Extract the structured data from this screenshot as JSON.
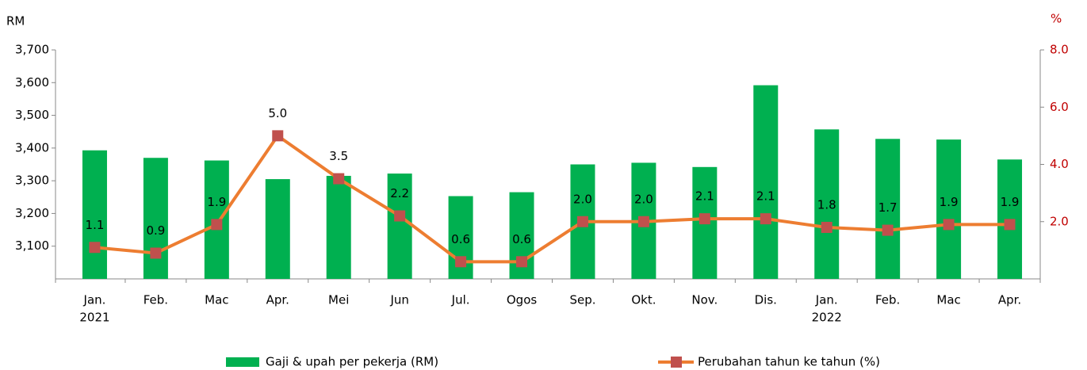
{
  "chart_data": {
    "type": "bar_line",
    "y_label": "RM",
    "y2_label": "%",
    "categories": [
      [
        "Jan.",
        "2021"
      ],
      [
        "Feb."
      ],
      [
        "Mac"
      ],
      [
        "Apr."
      ],
      [
        "Mei"
      ],
      [
        "Jun"
      ],
      [
        "Jul."
      ],
      [
        "Ogos"
      ],
      [
        "Sep."
      ],
      [
        "Okt."
      ],
      [
        "Nov."
      ],
      [
        "Dis."
      ],
      [
        "Jan.",
        "2022"
      ],
      [
        "Feb."
      ],
      [
        "Mac"
      ],
      [
        "Apr."
      ]
    ],
    "series": [
      {
        "name": "Gaji & upah per pekerja (RM)",
        "type": "bar",
        "color": "#00b050",
        "values": [
          3393,
          3370,
          3362,
          3305,
          3315,
          3322,
          3253,
          3265,
          3350,
          3355,
          3342,
          3592,
          3457,
          3428,
          3426,
          3365
        ]
      },
      {
        "name": "Perubahan tahun ke tahun (%)",
        "type": "line",
        "axis": "y2",
        "color": "#ed7d31",
        "marker_color": "#c0504d",
        "values": [
          1.1,
          0.9,
          1.9,
          5.0,
          3.5,
          2.2,
          0.6,
          0.6,
          2.0,
          2.0,
          2.1,
          2.1,
          1.8,
          1.7,
          1.9,
          1.9
        ],
        "value_labels": [
          "1.1",
          "0.9",
          "1.9",
          "5.0",
          "3.5",
          "2.2",
          "0.6",
          "0.6",
          "2.0",
          "2.0",
          "2.1",
          "2.1",
          "1.8",
          "1.7",
          "1.9",
          "1.9"
        ]
      }
    ],
    "ylim": [
      3000,
      3700
    ],
    "yticks": [
      {
        "value": 3100,
        "label": "3,100"
      },
      {
        "value": 3200,
        "label": "3,200"
      },
      {
        "value": 3300,
        "label": "3,300"
      },
      {
        "value": 3400,
        "label": "3,400"
      },
      {
        "value": 3500,
        "label": "3,500"
      },
      {
        "value": 3600,
        "label": "3,600"
      },
      {
        "value": 3700,
        "label": "3,700"
      }
    ],
    "y2lim": [
      0,
      8
    ],
    "y2ticks": [
      {
        "value": 2,
        "label": "2.0"
      },
      {
        "value": 4,
        "label": "4.0"
      },
      {
        "value": 6,
        "label": "6.0"
      },
      {
        "value": 8,
        "label": "8.0"
      }
    ],
    "legend": "bottom"
  }
}
